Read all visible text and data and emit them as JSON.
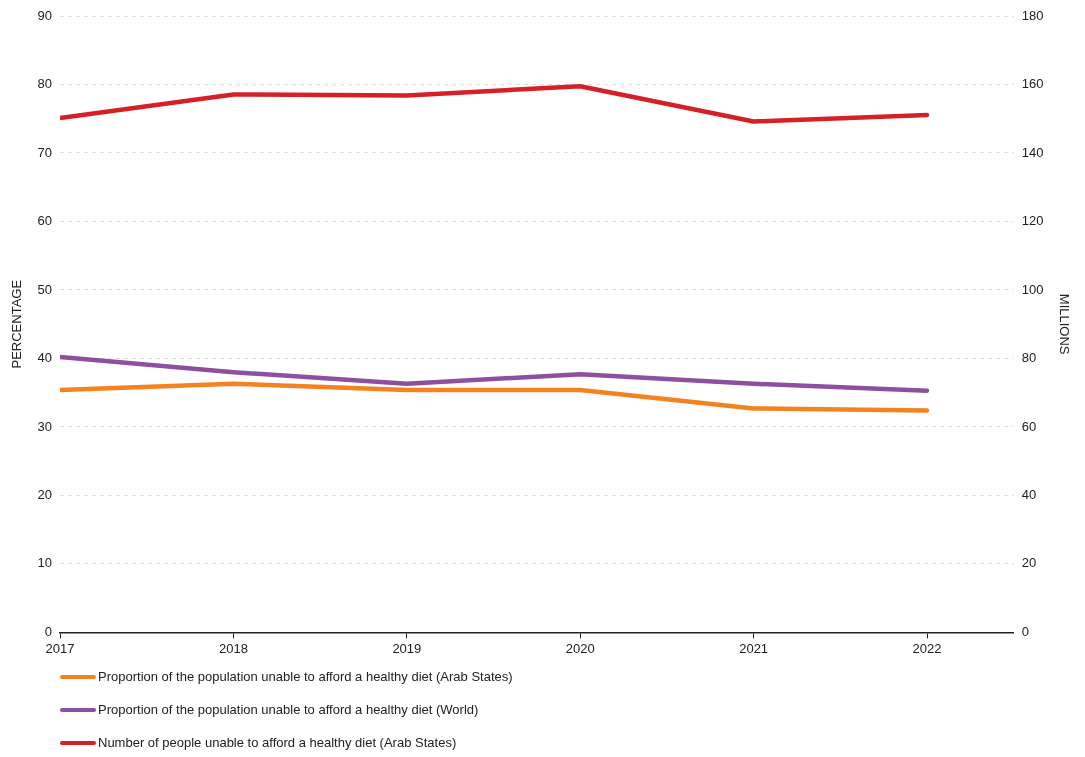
{
  "chart_data": {
    "type": "line",
    "x": [
      2017,
      2018,
      2019,
      2020,
      2021,
      2022
    ],
    "xlim": [
      2017,
      2022.5
    ],
    "xticks": [
      2017,
      2018,
      2019,
      2020,
      2021,
      2022
    ],
    "ylabel": "PERCENTAGE",
    "y2label": "MILLIONS",
    "ylim": [
      0,
      90
    ],
    "yticks": [
      0,
      10,
      20,
      30,
      40,
      50,
      60,
      70,
      80,
      90
    ],
    "y2lim": [
      0,
      180
    ],
    "y2ticks": [
      0,
      20,
      40,
      60,
      80,
      100,
      120,
      140,
      160,
      180
    ],
    "grid": "y",
    "legend": "bottom left",
    "marker": "none",
    "line_style": "solid",
    "series": [
      {
        "name": "Proportion of the population unable to afford a healthy diet (Arab States)",
        "color": "#f58220",
        "values": [
          35.4,
          36.3,
          35.4,
          35.4,
          32.7,
          32.4
        ]
      },
      {
        "name": "Proportion of the population unable to afford a healthy diet (World)",
        "color": "#8e4fa1",
        "values": [
          40.2,
          38.0,
          36.3,
          37.7,
          36.3,
          35.3
        ]
      },
      {
        "name": "Number of people unable to afford a healthy diet (Arab States)",
        "color": "#d71f27",
        "axis": "y2",
        "values": [
          150.2,
          157.1,
          156.8,
          159.5,
          149.2,
          151.1
        ]
      }
    ]
  }
}
